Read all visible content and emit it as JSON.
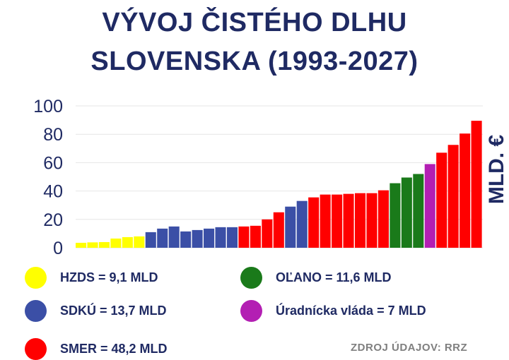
{
  "title_line1": "VÝVOJ ČISTÉHO DLHU",
  "title_line2": "SLOVENSKA (1993-2027)",
  "source": "ZDROJ ÚDAJOV: RRZ",
  "legend": [
    {
      "label": "HZDS = 9,1 MLD",
      "color": "#ffff00"
    },
    {
      "label": "OĽANO = 11,6 MLD",
      "color": "#1a7a1a"
    },
    {
      "label": "SDKÚ = 13,7 MLD",
      "color": "#3b4fa6"
    },
    {
      "label": "Úradnícka vláda = 7 MLD",
      "color": "#b31fb3"
    },
    {
      "label": "SMER = 48,2 MLD",
      "color": "#ff0000"
    }
  ],
  "chart_data": {
    "type": "bar",
    "title": "VÝVOJ ČISTÉHO DLHU SLOVENSKA (1993-2027)",
    "ylabel": "MLD. €",
    "xlabel": "",
    "ylim": [
      0,
      100
    ],
    "yticks": [
      0,
      20,
      40,
      60,
      80,
      100
    ],
    "grid": true,
    "colors": {
      "HZDS": "#ffff00",
      "SDKÚ": "#3b4fa6",
      "SMER": "#ff0000",
      "OĽANO": "#1a7a1a",
      "Úradnícka vláda": "#b31fb3"
    },
    "bars": [
      {
        "value": 3.5,
        "party": "HZDS"
      },
      {
        "value": 3.8,
        "party": "HZDS"
      },
      {
        "value": 4.0,
        "party": "HZDS"
      },
      {
        "value": 6.5,
        "party": "HZDS"
      },
      {
        "value": 7.5,
        "party": "HZDS"
      },
      {
        "value": 8.0,
        "party": "HZDS"
      },
      {
        "value": 11.0,
        "party": "SDKÚ"
      },
      {
        "value": 13.5,
        "party": "SDKÚ"
      },
      {
        "value": 15.0,
        "party": "SDKÚ"
      },
      {
        "value": 11.5,
        "party": "SDKÚ"
      },
      {
        "value": 12.5,
        "party": "SDKÚ"
      },
      {
        "value": 13.5,
        "party": "SDKÚ"
      },
      {
        "value": 14.5,
        "party": "SDKÚ"
      },
      {
        "value": 14.5,
        "party": "SDKÚ"
      },
      {
        "value": 15.0,
        "party": "SMER"
      },
      {
        "value": 15.5,
        "party": "SMER"
      },
      {
        "value": 20.0,
        "party": "SMER"
      },
      {
        "value": 25.0,
        "party": "SMER"
      },
      {
        "value": 29.0,
        "party": "SDKÚ"
      },
      {
        "value": 33.0,
        "party": "SDKÚ"
      },
      {
        "value": 35.5,
        "party": "SMER"
      },
      {
        "value": 37.5,
        "party": "SMER"
      },
      {
        "value": 37.5,
        "party": "SMER"
      },
      {
        "value": 38.0,
        "party": "SMER"
      },
      {
        "value": 38.5,
        "party": "SMER"
      },
      {
        "value": 38.5,
        "party": "SMER"
      },
      {
        "value": 40.5,
        "party": "SMER"
      },
      {
        "value": 45.5,
        "party": "OĽANO"
      },
      {
        "value": 49.5,
        "party": "OĽANO"
      },
      {
        "value": 52.0,
        "party": "OĽANO"
      },
      {
        "value": 59.0,
        "party": "Úradnícka vláda"
      },
      {
        "value": 67.0,
        "party": "SMER"
      },
      {
        "value": 72.5,
        "party": "SMER"
      },
      {
        "value": 80.5,
        "party": "SMER"
      },
      {
        "value": 89.5,
        "party": "SMER"
      }
    ]
  }
}
